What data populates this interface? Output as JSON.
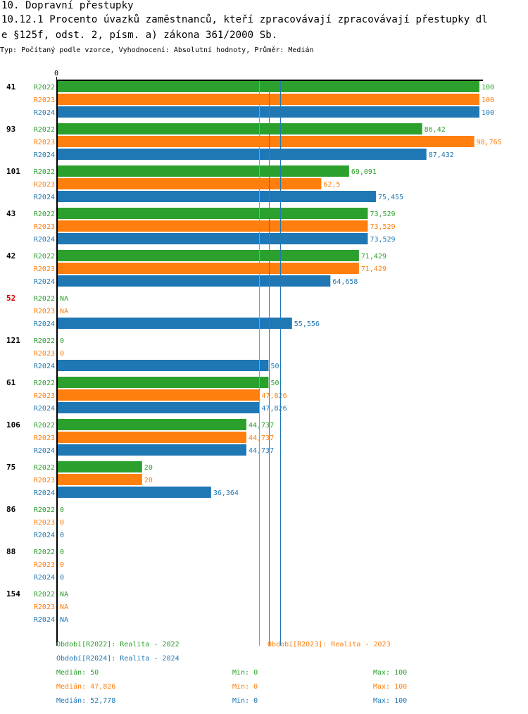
{
  "header": {
    "title": "10. Dopravní přestupky",
    "subtitle_line1": "10.12.1 Procento úvazků zaměstnanců, kteří zpracovávají zpracovávají přestupky dl",
    "subtitle_line2": "e §125f, odst. 2, písm. a) zákona 361/2000 Sb.",
    "meta": "Typ: Počítaný podle vzorce, Vyhodnocení: Absolutní hodnoty, Průměr: Medián"
  },
  "colors": {
    "R2022": "#2ca02c",
    "R2023": "#ff7f0e",
    "R2024": "#1f77b4",
    "highlight_group": "#dd0000"
  },
  "chart_data": {
    "type": "bar",
    "orientation": "horizontal",
    "title": "10.12.1 Procento úvazků zaměstnanců, kteří zpracovávají zpracovávají přestupky dle §125f, odst. 2, písm. a) zákona 361/2000 Sb.",
    "xlabel": "",
    "ylabel": "",
    "xlim": [
      0,
      100
    ],
    "x_tick_labels": [
      "0"
    ],
    "grid": false,
    "series_names": [
      "R2022",
      "R2023",
      "R2024"
    ],
    "categories": [
      "41",
      "93",
      "101",
      "43",
      "42",
      "52",
      "121",
      "61",
      "106",
      "75",
      "86",
      "88",
      "154"
    ],
    "highlighted_categories": [
      "52"
    ],
    "series": [
      {
        "name": "R2022",
        "values": [
          100,
          86.42,
          69.091,
          73.529,
          71.429,
          null,
          0,
          50,
          44.737,
          20,
          0,
          0,
          null
        ],
        "labels": [
          "100",
          "86,42",
          "69,091",
          "73,529",
          "71,429",
          "NA",
          "0",
          "50",
          "44,737",
          "20",
          "0",
          "0",
          "NA"
        ]
      },
      {
        "name": "R2023",
        "values": [
          100,
          98.765,
          62.5,
          73.529,
          71.429,
          null,
          0,
          47.826,
          44.737,
          20,
          0,
          0,
          null
        ],
        "labels": [
          "100",
          "98,765",
          "62,5",
          "73,529",
          "71,429",
          "NA",
          "0",
          "47,826",
          "44,737",
          "20",
          "0",
          "0",
          "NA"
        ]
      },
      {
        "name": "R2024",
        "values": [
          100,
          87.432,
          75.455,
          73.529,
          64.658,
          55.556,
          50,
          47.826,
          44.737,
          36.364,
          0,
          0,
          null
        ],
        "labels": [
          "100",
          "87,432",
          "75,455",
          "73,529",
          "64,658",
          "55,556",
          "50",
          "47,826",
          "44,737",
          "36,364",
          "0",
          "0",
          "NA"
        ]
      }
    ],
    "median_lines": [
      {
        "series": "R2022",
        "value": 50
      },
      {
        "series": "R2023",
        "value": 47.826
      },
      {
        "series": "R2024",
        "value": 52.778
      }
    ]
  },
  "legend": {
    "periods": [
      {
        "series": "R2022",
        "text": "Období[R2022]: Realita - 2022"
      },
      {
        "series": "R2023",
        "text": "Období[R2023]: Realita - 2023"
      },
      {
        "series": "R2024",
        "text": "Období[R2024]: Realita - 2024"
      }
    ],
    "stats": [
      {
        "series": "R2022",
        "median": "Medián: 50",
        "min": "Min: 0",
        "max": "Max: 100"
      },
      {
        "series": "R2023",
        "median": "Medián: 47,826",
        "min": "Min: 0",
        "max": "Max: 100"
      },
      {
        "series": "R2024",
        "median": "Medián: 52,778",
        "min": "Min: 0",
        "max": "Max: 100"
      }
    ]
  }
}
